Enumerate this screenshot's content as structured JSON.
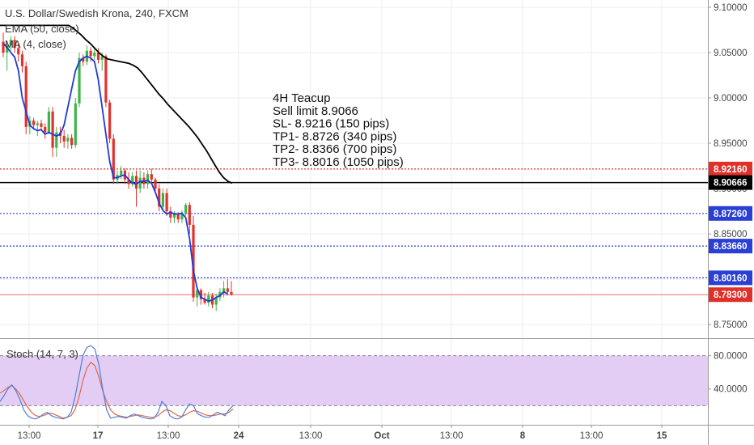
{
  "chart_data": {
    "type": "candlestick",
    "title": "U.S. Dollar/Swedish Krona, 240, FXCM",
    "indicators": [
      {
        "name": "EMA (50, close)",
        "color": "#000000"
      },
      {
        "name": "MA (4, close)",
        "color": "#1f3bd6"
      }
    ],
    "price_axis": {
      "labels": [
        "9.10000",
        "9.05000",
        "9.00000",
        "8.95000",
        "8.90000",
        "8.85000",
        "8.80000",
        "8.75000"
      ],
      "values": [
        9.1,
        9.05,
        9.0,
        8.95,
        8.9,
        8.85,
        8.8,
        8.75
      ],
      "range": [
        8.735,
        9.108
      ]
    },
    "time_axis": {
      "labels": [
        "13:00",
        "17",
        "13:00",
        "24",
        "13:00",
        "Oct",
        "13:00",
        "8",
        "13:00",
        "15"
      ],
      "bold": [
        false,
        true,
        false,
        true,
        false,
        true,
        false,
        true,
        false,
        true
      ]
    },
    "levels": [
      {
        "label": "8.92160",
        "value": 8.9216,
        "color": "#e0302a",
        "style": "dotted",
        "role": "stop-loss"
      },
      {
        "label": "8.90666",
        "value": 8.90666,
        "color": "#000000",
        "style": "solid",
        "role": "sell-limit"
      },
      {
        "label": "8.87260",
        "value": 8.8726,
        "color": "#2a3fd6",
        "style": "dotted",
        "role": "tp1"
      },
      {
        "label": "8.83660",
        "value": 8.8366,
        "color": "#2a3fd6",
        "style": "dotted",
        "role": "tp2"
      },
      {
        "label": "8.80160",
        "value": 8.8016,
        "color": "#2a3fd6",
        "style": "dotted",
        "role": "tp3"
      },
      {
        "label": "8.78300",
        "value": 8.783,
        "color": "#e0302a",
        "style": "thin",
        "role": "last-price"
      }
    ],
    "annotation": [
      "4H Teacup",
      "Sell limit 8.9066",
      "SL- 8.9216 (150 pips)",
      "TP1- 8.8726 (340 pips)",
      "TP2- 8.8366 (700 pips)",
      "TP3- 8.8016 (1050 pips)"
    ],
    "candles": [
      {
        "o": 9.062,
        "h": 9.072,
        "l": 9.045,
        "c": 9.05
      },
      {
        "o": 9.05,
        "h": 9.06,
        "l": 9.03,
        "c": 9.058
      },
      {
        "o": 9.058,
        "h": 9.068,
        "l": 9.052,
        "c": 9.064
      },
      {
        "o": 9.064,
        "h": 9.068,
        "l": 9.05,
        "c": 9.055
      },
      {
        "o": 9.055,
        "h": 9.06,
        "l": 9.04,
        "c": 9.048
      },
      {
        "o": 9.048,
        "h": 9.052,
        "l": 9.028,
        "c": 9.035
      },
      {
        "o": 9.035,
        "h": 9.04,
        "l": 8.96,
        "c": 8.968
      },
      {
        "o": 8.968,
        "h": 8.98,
        "l": 8.96,
        "c": 8.975
      },
      {
        "o": 8.975,
        "h": 8.978,
        "l": 8.965,
        "c": 8.97
      },
      {
        "o": 8.97,
        "h": 8.975,
        "l": 8.958,
        "c": 8.972
      },
      {
        "o": 8.972,
        "h": 8.976,
        "l": 8.965,
        "c": 8.968
      },
      {
        "o": 8.968,
        "h": 8.972,
        "l": 8.955,
        "c": 8.962
      },
      {
        "o": 8.962,
        "h": 8.99,
        "l": 8.96,
        "c": 8.985
      },
      {
        "o": 8.985,
        "h": 8.99,
        "l": 8.935,
        "c": 8.945
      },
      {
        "o": 8.945,
        "h": 8.968,
        "l": 8.935,
        "c": 8.962
      },
      {
        "o": 8.962,
        "h": 8.968,
        "l": 8.95,
        "c": 8.958
      },
      {
        "o": 8.958,
        "h": 8.965,
        "l": 8.945,
        "c": 8.952
      },
      {
        "o": 8.952,
        "h": 8.96,
        "l": 8.944,
        "c": 8.956
      },
      {
        "o": 8.956,
        "h": 8.96,
        "l": 8.944,
        "c": 8.948
      },
      {
        "o": 8.948,
        "h": 9.0,
        "l": 8.945,
        "c": 8.994
      },
      {
        "o": 8.994,
        "h": 9.05,
        "l": 8.99,
        "c": 9.044
      },
      {
        "o": 9.044,
        "h": 9.048,
        "l": 9.035,
        "c": 9.04
      },
      {
        "o": 9.04,
        "h": 9.058,
        "l": 9.036,
        "c": 9.052
      },
      {
        "o": 9.052,
        "h": 9.056,
        "l": 9.04,
        "c": 9.046
      },
      {
        "o": 9.046,
        "h": 9.055,
        "l": 9.042,
        "c": 9.05
      },
      {
        "o": 9.05,
        "h": 9.055,
        "l": 9.038,
        "c": 9.042
      },
      {
        "o": 9.042,
        "h": 9.05,
        "l": 9.03,
        "c": 9.046
      },
      {
        "o": 9.046,
        "h": 9.048,
        "l": 8.99,
        "c": 8.995
      },
      {
        "o": 8.995,
        "h": 8.998,
        "l": 8.95,
        "c": 8.955
      },
      {
        "o": 8.955,
        "h": 8.96,
        "l": 8.905,
        "c": 8.91
      },
      {
        "o": 8.91,
        "h": 8.92,
        "l": 8.905,
        "c": 8.915
      },
      {
        "o": 8.915,
        "h": 8.925,
        "l": 8.91,
        "c": 8.92
      },
      {
        "o": 8.92,
        "h": 8.922,
        "l": 8.905,
        "c": 8.91
      },
      {
        "o": 8.91,
        "h": 8.918,
        "l": 8.9,
        "c": 8.905
      },
      {
        "o": 8.905,
        "h": 8.918,
        "l": 8.902,
        "c": 8.914
      },
      {
        "o": 8.914,
        "h": 8.92,
        "l": 8.88,
        "c": 8.9
      },
      {
        "o": 8.9,
        "h": 8.92,
        "l": 8.895,
        "c": 8.912
      },
      {
        "o": 8.912,
        "h": 8.918,
        "l": 8.9,
        "c": 8.905
      },
      {
        "o": 8.905,
        "h": 8.92,
        "l": 8.9,
        "c": 8.916
      },
      {
        "o": 8.916,
        "h": 8.922,
        "l": 8.905,
        "c": 8.91
      },
      {
        "o": 8.91,
        "h": 8.912,
        "l": 8.895,
        "c": 8.9
      },
      {
        "o": 8.9,
        "h": 8.905,
        "l": 8.875,
        "c": 8.88
      },
      {
        "o": 8.88,
        "h": 8.9,
        "l": 8.875,
        "c": 8.895
      },
      {
        "o": 8.895,
        "h": 8.9,
        "l": 8.87,
        "c": 8.875
      },
      {
        "o": 8.875,
        "h": 8.88,
        "l": 8.862,
        "c": 8.868
      },
      {
        "o": 8.868,
        "h": 8.875,
        "l": 8.862,
        "c": 8.872
      },
      {
        "o": 8.872,
        "h": 8.874,
        "l": 8.862,
        "c": 8.866
      },
      {
        "o": 8.866,
        "h": 8.876,
        "l": 8.862,
        "c": 8.872
      },
      {
        "o": 8.872,
        "h": 8.884,
        "l": 8.87,
        "c": 8.882
      },
      {
        "o": 8.882,
        "h": 8.885,
        "l": 8.85,
        "c": 8.86
      },
      {
        "o": 8.86,
        "h": 8.87,
        "l": 8.775,
        "c": 8.78
      },
      {
        "o": 8.78,
        "h": 8.792,
        "l": 8.77,
        "c": 8.788
      },
      {
        "o": 8.788,
        "h": 8.79,
        "l": 8.772,
        "c": 8.778
      },
      {
        "o": 8.778,
        "h": 8.785,
        "l": 8.772,
        "c": 8.774
      },
      {
        "o": 8.774,
        "h": 8.786,
        "l": 8.77,
        "c": 8.782
      },
      {
        "o": 8.782,
        "h": 8.785,
        "l": 8.768,
        "c": 8.772
      },
      {
        "o": 8.772,
        "h": 8.784,
        "l": 8.765,
        "c": 8.78
      },
      {
        "o": 8.78,
        "h": 8.79,
        "l": 8.776,
        "c": 8.786
      },
      {
        "o": 8.786,
        "h": 8.798,
        "l": 8.78,
        "c": 8.79
      },
      {
        "o": 8.79,
        "h": 8.8,
        "l": 8.782,
        "c": 8.786
      },
      {
        "o": 8.786,
        "h": 8.798,
        "l": 8.782,
        "c": 8.783
      }
    ],
    "ema50": [
      9.08,
      9.077,
      9.073,
      9.069,
      9.064,
      9.06,
      9.055,
      9.05,
      9.046,
      9.043,
      9.042,
      9.041,
      9.04,
      9.039,
      9.038,
      9.036,
      9.033,
      9.028,
      9.022,
      9.016,
      9.01,
      9.004,
      8.999,
      8.993,
      8.988,
      8.983,
      8.978,
      8.973,
      8.968,
      8.962,
      8.956,
      8.949,
      8.942,
      8.934,
      8.926,
      8.918,
      8.912,
      8.908,
      8.906
    ],
    "ma4": [
      9.06,
      9.056,
      9.05,
      9.045,
      9.03,
      9.0,
      8.985,
      8.97,
      8.966,
      8.964,
      8.965,
      8.96,
      8.962,
      8.96,
      8.958,
      8.96,
      8.97,
      8.99,
      9.01,
      9.03,
      9.04,
      9.044,
      9.046,
      9.044,
      9.04,
      9.02,
      8.99,
      8.96,
      8.93,
      8.912,
      8.912,
      8.914,
      8.915,
      8.91,
      8.906,
      8.905,
      8.908,
      8.908,
      8.909,
      8.906,
      8.896,
      8.884,
      8.876,
      8.872,
      8.874,
      8.872,
      8.872,
      8.873,
      8.868,
      8.845,
      8.81,
      8.79,
      8.78,
      8.778,
      8.776,
      8.777,
      8.78,
      8.782,
      8.786,
      8.784
    ],
    "stochastic": {
      "name": "Stoch (14, 7, 3)",
      "axis_labels": [
        "80.0000",
        "40.0000"
      ],
      "axis_values": [
        80,
        40
      ],
      "overbought": 80,
      "oversold": 20,
      "range": [
        -3,
        100
      ],
      "k": [
        25,
        32,
        40,
        45,
        38,
        28,
        15,
        8,
        5,
        4,
        6,
        10,
        12,
        8,
        6,
        5,
        4,
        6,
        12,
        30,
        55,
        80,
        90,
        92,
        88,
        70,
        40,
        15,
        5,
        6,
        7,
        6,
        5,
        8,
        10,
        8,
        6,
        5,
        4,
        5,
        12,
        25,
        20,
        8,
        5,
        4,
        6,
        15,
        22,
        20,
        10,
        8,
        6,
        6,
        9,
        12,
        10,
        8,
        15,
        20
      ],
      "d": [
        35,
        38,
        42,
        44,
        40,
        34,
        26,
        18,
        12,
        8,
        7,
        8,
        10,
        11,
        9,
        7,
        5,
        6,
        8,
        15,
        30,
        50,
        65,
        72,
        68,
        55,
        38,
        25,
        15,
        10,
        8,
        7,
        6,
        7,
        8,
        9,
        8,
        7,
        6,
        6,
        8,
        12,
        15,
        14,
        11,
        8,
        7,
        9,
        12,
        14,
        13,
        11,
        9,
        8,
        8,
        9,
        10,
        10,
        12,
        16
      ]
    }
  }
}
